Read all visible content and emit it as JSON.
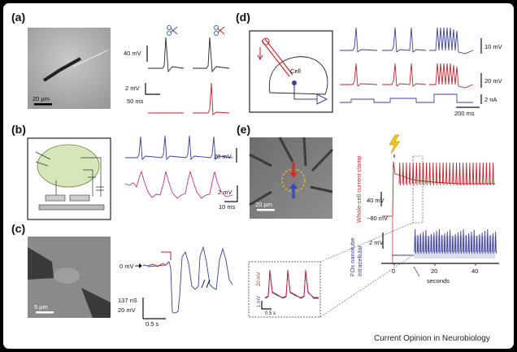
{
  "panels": {
    "a": {
      "label": "(a)",
      "scale_um": "20 µm",
      "v1": "40 mV",
      "v2": "2 mV",
      "t": "50 ms"
    },
    "b": {
      "label": "(b)",
      "v1": "20 mV",
      "v2": "2 mV",
      "t": "10 ms"
    },
    "c": {
      "label": "(c)",
      "zero": "0 mV",
      "scale_um": "5 µm",
      "ns": "137 nS",
      "mv": "20 mV",
      "t": "0.5 s"
    },
    "d": {
      "label": "(d)",
      "cell": "Cell",
      "v1": "10 mV",
      "v2": "20 mV",
      "i": "2 nA",
      "t": "200 ms"
    },
    "e": {
      "label": "(e)",
      "scale_um": "20 µm",
      "whole_cell": "Whole-cell current clamp",
      "intracellular": "intracellular",
      "nanotube": "FOx nanotube",
      "v40": "40 mV",
      "vm80": "−80 mV",
      "v2": "2 mV",
      "x_ticks": [
        "0",
        "20",
        "40"
      ],
      "x_unit": "seconds",
      "inset_v20": "20 mV",
      "inset_v1": "1 mV",
      "inset_t": "0.5 s"
    }
  },
  "footer": "Current Opinion in Neurobiology"
}
